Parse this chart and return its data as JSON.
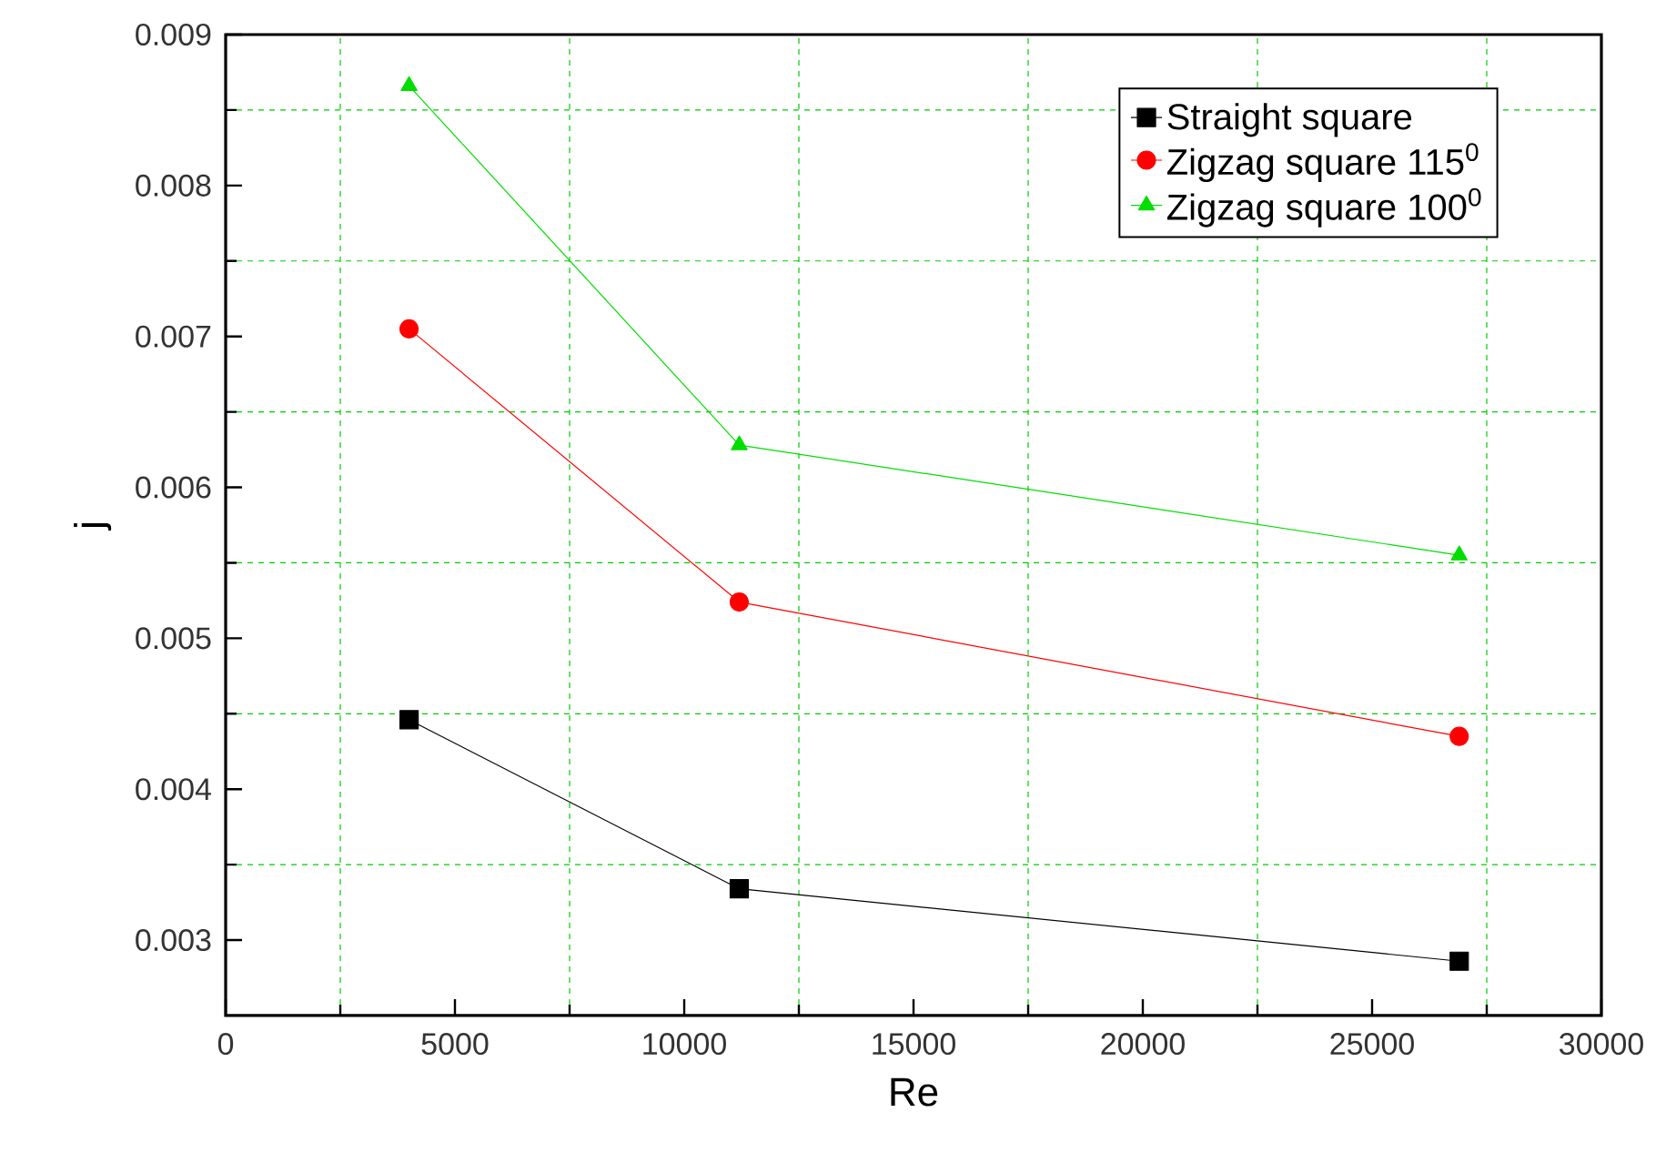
{
  "chart_data": {
    "type": "line",
    "xlabel": "Re",
    "ylabel": "j",
    "x": [
      4000,
      11200,
      26900
    ],
    "series": [
      {
        "name": "Straight square",
        "color": "#000000",
        "marker": "square",
        "values": [
          0.00446,
          0.00334,
          0.00286
        ]
      },
      {
        "name": "Zigzag square 115$^{0}$",
        "color": "#ff0000",
        "marker": "circle",
        "values": [
          0.00705,
          0.00524,
          0.00435
        ]
      },
      {
        "name": "Zigzag square 100$^{0}$",
        "color": "#00dd00",
        "marker": "triangle",
        "values": [
          0.00866,
          0.00628,
          0.00555
        ]
      }
    ],
    "xlim": [
      0,
      30000
    ],
    "ylim": [
      0.0025,
      0.009
    ],
    "xticks": [
      0,
      {
        "value": 2500,
        "label": null
      },
      5000,
      {
        "value": 7500,
        "label": null
      },
      10000,
      {
        "value": 12500,
        "label": null
      },
      15000,
      {
        "value": 17500,
        "label": null
      },
      20000,
      {
        "value": 22500,
        "label": null
      },
      25000,
      {
        "value": 27500,
        "label": null
      },
      30000
    ],
    "yticks": [
      0.003,
      {
        "value": 0.0035,
        "label": null
      },
      0.004,
      {
        "value": 0.0045,
        "label": null
      },
      0.005,
      {
        "value": 0.0055,
        "label": null
      },
      0.006,
      {
        "value": 0.0065,
        "label": null
      },
      0.007,
      {
        "value": 0.0075,
        "label": null
      },
      0.008,
      {
        "value": 0.0085,
        "label": null
      },
      0.009
    ],
    "grid": true,
    "legend": "top right",
    "line_style": "solid"
  }
}
